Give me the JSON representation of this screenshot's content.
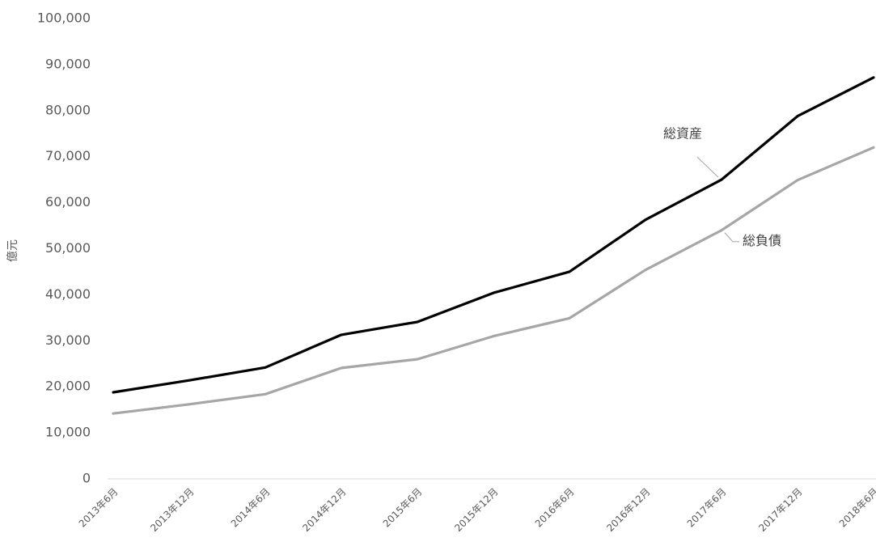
{
  "chart_data": {
    "type": "line",
    "title": "",
    "xlabel": "",
    "ylabel": "億元",
    "ylim": [
      0,
      100000
    ],
    "yticks": [
      0,
      10000,
      20000,
      30000,
      40000,
      50000,
      60000,
      70000,
      80000,
      90000,
      100000
    ],
    "ytick_labels": [
      "0",
      "10,000",
      "20,000",
      "30,000",
      "40,000",
      "50,000",
      "60,000",
      "70,000",
      "80,000",
      "90,000",
      "100,000"
    ],
    "grid": false,
    "legend": "none",
    "categories": [
      "2013年6月",
      "2013年12月",
      "2014年6月",
      "2014年12月",
      "2015年6月",
      "2015年12月",
      "2016年6月",
      "2016年12月",
      "2017年6月",
      "2017年12月",
      "2018年6月"
    ],
    "series": [
      {
        "name": "総資産",
        "color": "#000000",
        "values": [
          18800,
          21400,
          24200,
          31300,
          34100,
          40400,
          45000,
          56300,
          65000,
          78800,
          87200
        ]
      },
      {
        "name": "総負債",
        "color": "#a6a6a6",
        "values": [
          14200,
          16200,
          18400,
          24100,
          26000,
          31000,
          34900,
          45400,
          54000,
          64900,
          72000
        ]
      }
    ],
    "annotations": [
      {
        "text": "総資産",
        "series": 0
      },
      {
        "text": "総負債",
        "series": 1
      }
    ]
  }
}
